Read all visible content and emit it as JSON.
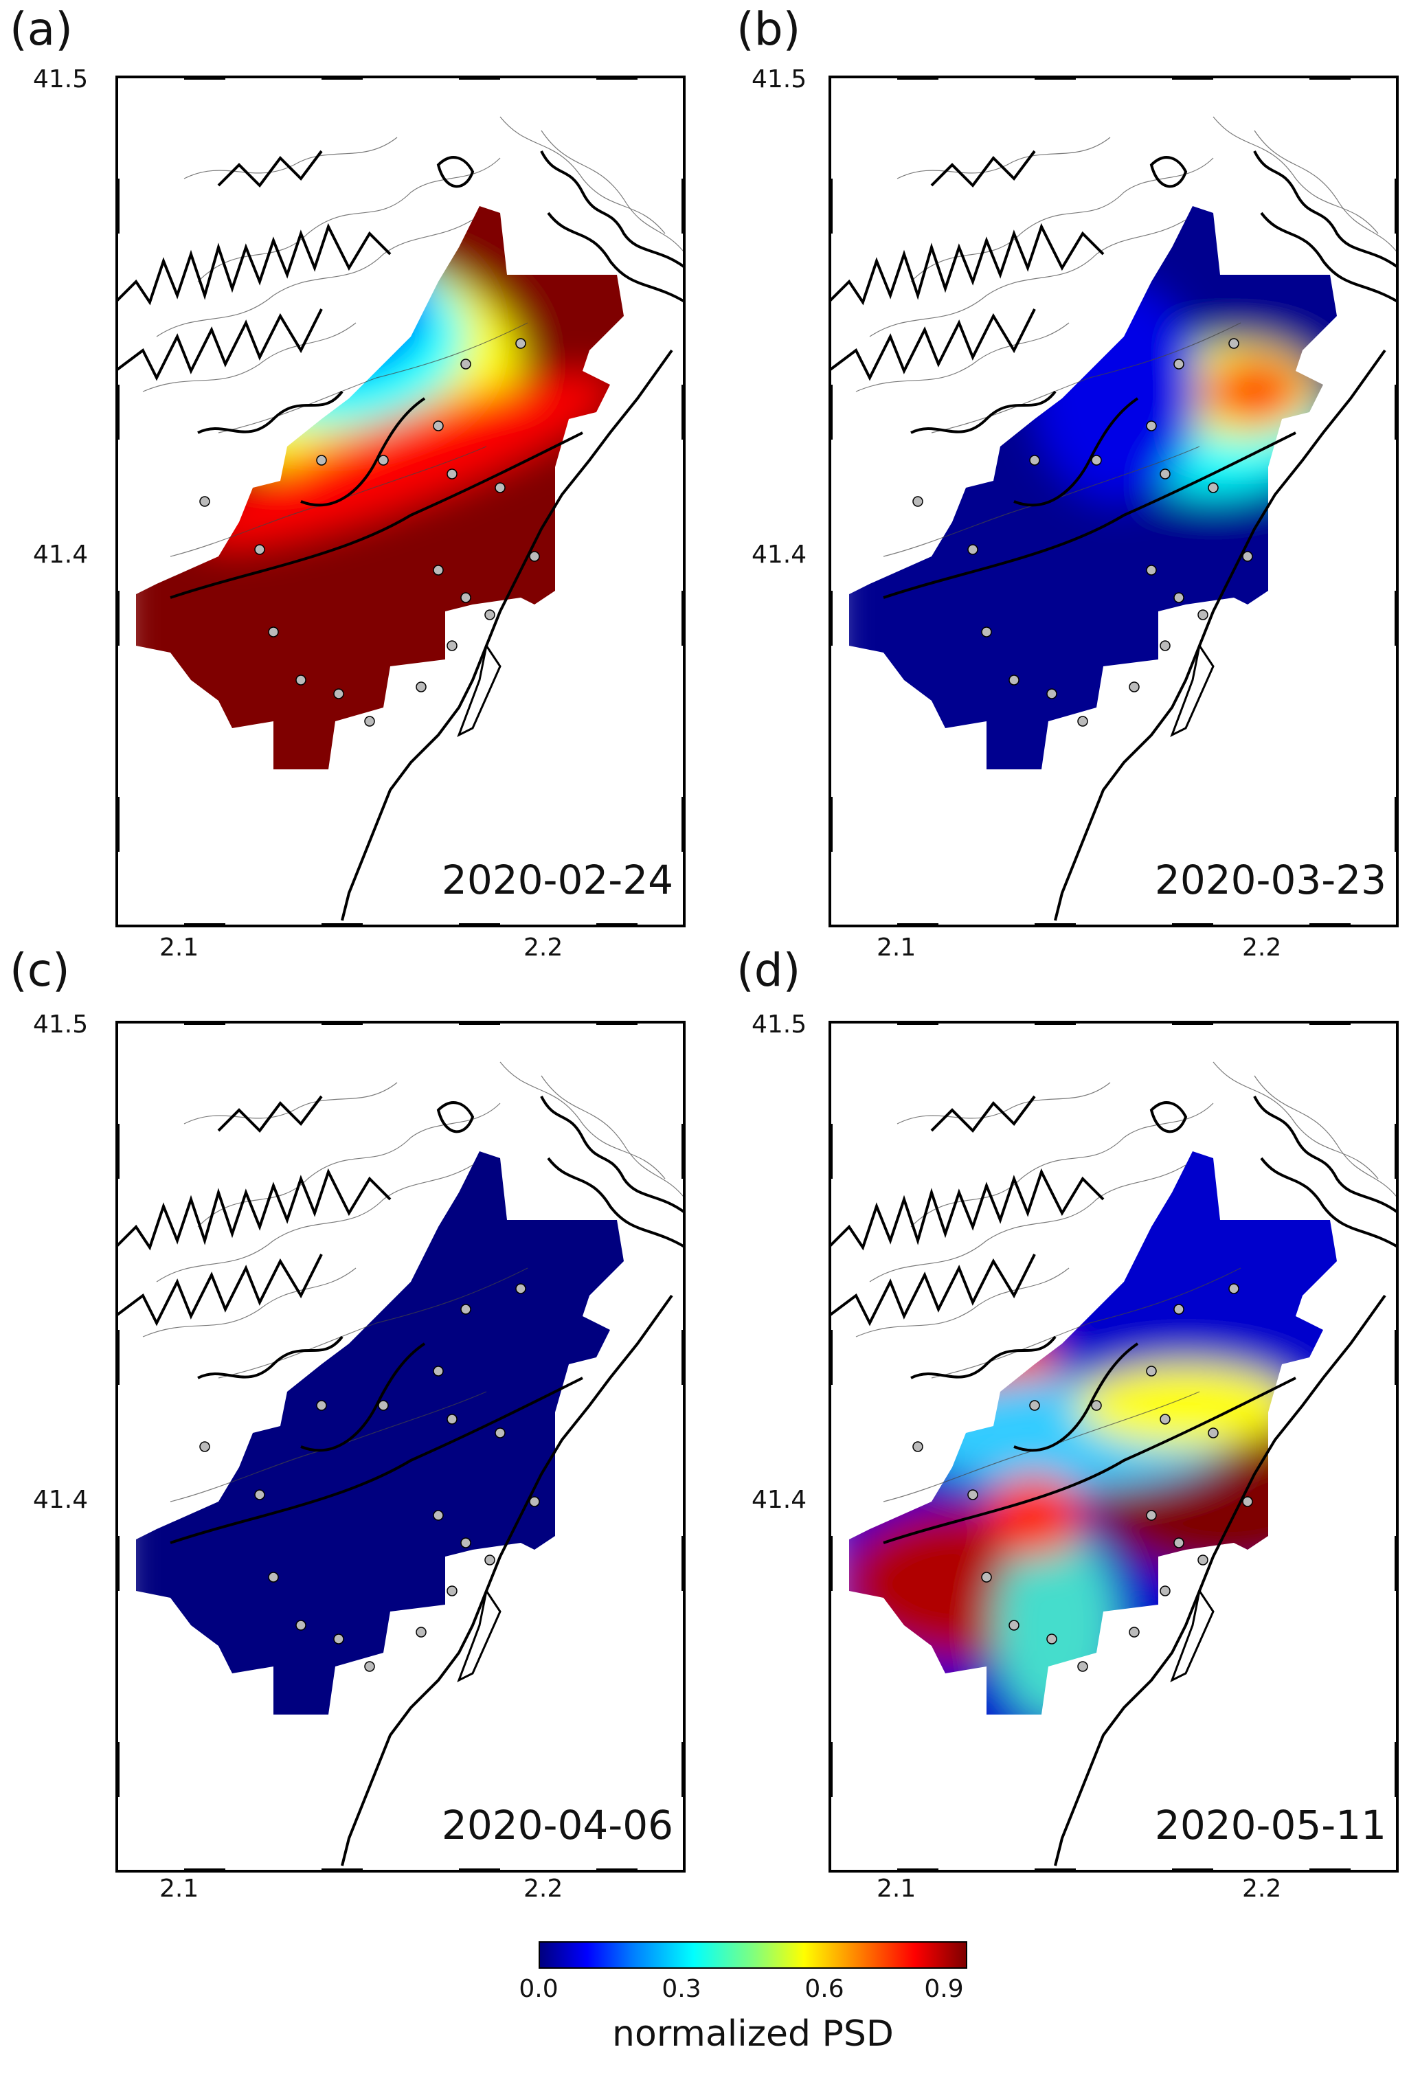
{
  "panels": [
    {
      "letter": "(a)",
      "date": "2020-02-24",
      "pattern": "a"
    },
    {
      "letter": "(b)",
      "date": "2020-03-23",
      "pattern": "b"
    },
    {
      "letter": "(c)",
      "date": "2020-04-06",
      "pattern": "c"
    },
    {
      "letter": "(d)",
      "date": "2020-05-11",
      "pattern": "d"
    }
  ],
  "axes": {
    "lat_labels": [
      "41.5",
      "41.4"
    ],
    "lon_labels": [
      "2.1",
      "2.2"
    ]
  },
  "colorbar": {
    "ticks": [
      "0.0",
      "0.3",
      "0.6",
      "0.9"
    ],
    "title": "normalized PSD",
    "colors": [
      "#00007f",
      "#0000ff",
      "#00ffff",
      "#ffff00",
      "#ff0000",
      "#7f0000"
    ]
  }
}
